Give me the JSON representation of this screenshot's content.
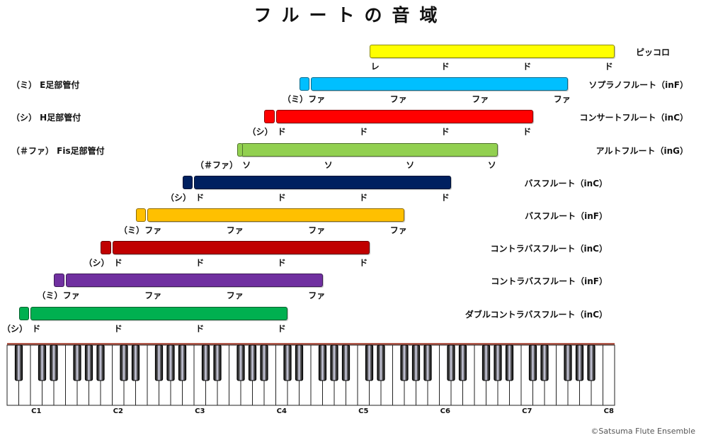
{
  "title": "フルートの音域",
  "copyright": "©Satsuma Flute Ensemble",
  "chart_data": {
    "type": "range",
    "octave_labels": [
      "C1",
      "C2",
      "C3",
      "C4",
      "C5",
      "C6",
      "C7",
      "C8"
    ],
    "instruments": [
      {
        "name": "ピッコロ",
        "low": "D5",
        "high": "C8",
        "ext": null,
        "ext_label": null,
        "ext_left_label": null,
        "notes": [
          {
            "text": "レ",
            "at": "D5"
          },
          {
            "text": "ド",
            "at": "C6"
          },
          {
            "text": "ド",
            "at": "C7"
          },
          {
            "text": "ド",
            "at": "C8"
          }
        ],
        "color": "#ffff00"
      },
      {
        "name": "ソプラノフルート（inF）",
        "low": "F4",
        "high": "F7",
        "ext": "E4",
        "ext_label": "（ミ）",
        "ext_left_label": "（ミ） E足部管付",
        "notes": [
          {
            "text": "ファ",
            "at": "F4"
          },
          {
            "text": "ファ",
            "at": "F5"
          },
          {
            "text": "ファ",
            "at": "F6"
          },
          {
            "text": "ファ",
            "at": "F7"
          }
        ],
        "color": "#00bfff"
      },
      {
        "name": "コンサートフルート（inC）",
        "low": "C4",
        "high": "C7",
        "ext": "B3",
        "ext_label": "（シ）",
        "ext_left_label": "（シ） H足部管付",
        "notes": [
          {
            "text": "ド",
            "at": "C4"
          },
          {
            "text": "ド",
            "at": "C5"
          },
          {
            "text": "ド",
            "at": "C6"
          },
          {
            "text": "ド",
            "at": "C7"
          }
        ],
        "color": "#ff0000"
      },
      {
        "name": "アルトフルート（inG）",
        "low": "G3",
        "high": "G6",
        "ext": "F#3",
        "ext_label": "（＃ファ）",
        "ext_left_label": "（＃ファ） Fis足部管付",
        "notes": [
          {
            "text": "ソ",
            "at": "G3"
          },
          {
            "text": "ソ",
            "at": "G4"
          },
          {
            "text": "ソ",
            "at": "G5"
          },
          {
            "text": "ソ",
            "at": "G6"
          }
        ],
        "color": "#92d050"
      },
      {
        "name": "バスフルート（inC）",
        "low": "C3",
        "high": "C6",
        "ext": "B2",
        "ext_label": "（シ）",
        "ext_left_label": null,
        "notes": [
          {
            "text": "ド",
            "at": "C3"
          },
          {
            "text": "ド",
            "at": "C4"
          },
          {
            "text": "ド",
            "at": "C5"
          },
          {
            "text": "ド",
            "at": "C6"
          }
        ],
        "color": "#002060"
      },
      {
        "name": "バスフルート（inF）",
        "low": "F2",
        "high": "F5",
        "ext": "E2",
        "ext_label": "（ミ）",
        "ext_left_label": null,
        "notes": [
          {
            "text": "ファ",
            "at": "F2"
          },
          {
            "text": "ファ",
            "at": "F3"
          },
          {
            "text": "ファ",
            "at": "F4"
          },
          {
            "text": "ファ",
            "at": "F5"
          }
        ],
        "color": "#ffc000"
      },
      {
        "name": "コントラバスフルート（inC）",
        "low": "C2",
        "high": "C5",
        "ext": "B1",
        "ext_label": "（シ）",
        "ext_left_label": null,
        "notes": [
          {
            "text": "ド",
            "at": "C2"
          },
          {
            "text": "ド",
            "at": "C3"
          },
          {
            "text": "ド",
            "at": "C4"
          },
          {
            "text": "ド",
            "at": "C5"
          }
        ],
        "color": "#c00000"
      },
      {
        "name": "コントラバスフルート（inF）",
        "low": "F1",
        "high": "F4",
        "ext": "E1",
        "ext_label": "（ミ）",
        "ext_left_label": null,
        "notes": [
          {
            "text": "ファ",
            "at": "F1"
          },
          {
            "text": "ファ",
            "at": "F2"
          },
          {
            "text": "ファ",
            "at": "F3"
          },
          {
            "text": "ファ",
            "at": "F4"
          }
        ],
        "color": "#7030a0"
      },
      {
        "name": "ダブルコントラバスフルート（inC）",
        "low": "C1",
        "high": "C4",
        "ext": "B0",
        "ext_label": "（シ）",
        "ext_left_label": null,
        "notes": [
          {
            "text": "ド",
            "at": "C1"
          },
          {
            "text": "ド",
            "at": "C2"
          },
          {
            "text": "ド",
            "at": "C3"
          },
          {
            "text": "ド",
            "at": "C4"
          }
        ],
        "color": "#00b050"
      }
    ]
  }
}
